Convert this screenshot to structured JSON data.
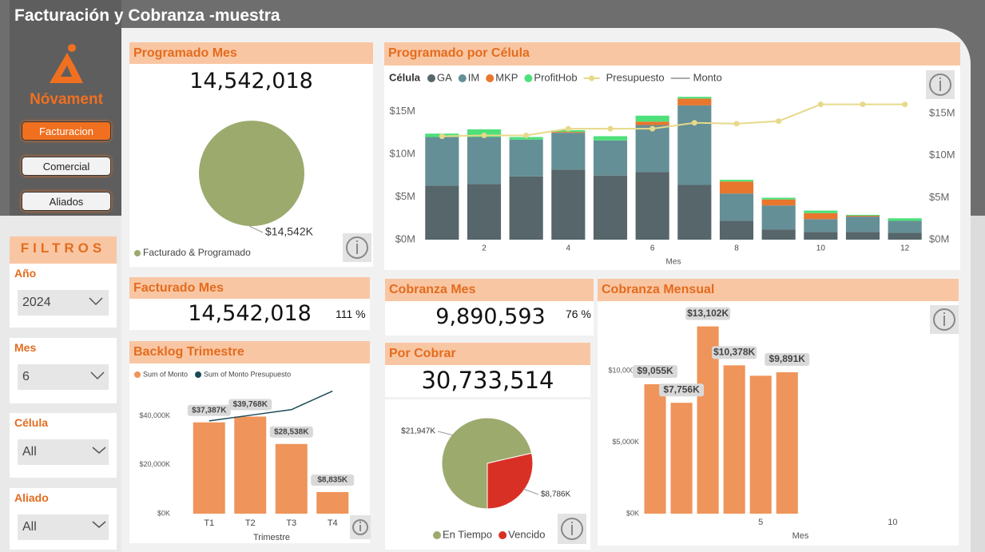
{
  "header": {
    "title": "Facturación y Cobranza -muestra"
  },
  "logo": {
    "name": "Nóvament"
  },
  "nav": [
    "Facturacion",
    "Comercial",
    "Aliados"
  ],
  "filters": {
    "title": "FILTROS",
    "items": [
      {
        "label": "Año",
        "value": "2024"
      },
      {
        "label": "Mes",
        "value": "6"
      },
      {
        "label": "Célula",
        "value": "All"
      },
      {
        "label": "Aliado",
        "value": "All"
      }
    ]
  },
  "cards": {
    "programado": {
      "title": "Programado Mes",
      "value": "14,542,018"
    },
    "facturado": {
      "title": "Facturado Mes",
      "value": "14,542,018",
      "percent": "111 %"
    },
    "cobranza": {
      "title": "Cobranza Mes",
      "value": "9,890,593",
      "percent": "76 %"
    },
    "por_cobrar": {
      "title": "Por Cobrar",
      "value": "30,733,514"
    }
  },
  "chart_data": [
    {
      "type": "pie",
      "categories": [
        "Facturado & Programado"
      ],
      "values": [
        14542
      ],
      "value_labels": [
        "$14,542K"
      ],
      "colors": [
        "#9caa6e"
      ]
    },
    {
      "type": "bar",
      "stacked": true,
      "title": "Programado por Célula",
      "legend_title": "Célula",
      "x_label": "Mes",
      "x": [
        1,
        2,
        3,
        4,
        5,
        6,
        7,
        8,
        9,
        10,
        11,
        12
      ],
      "xlim": [
        0.5,
        12.5
      ],
      "xticks": [
        2,
        4,
        6,
        8,
        10,
        12
      ],
      "ylim": [
        0,
        17
      ],
      "yticks": [
        {
          "value": 0,
          "label": "$0M"
        },
        {
          "value": 5,
          "label": "$5M"
        },
        {
          "value": 10,
          "label": "$10M"
        },
        {
          "value": 15,
          "label": "$15M"
        }
      ],
      "y2lim": [
        0,
        17.3
      ],
      "y2ticks": [
        {
          "value": 0,
          "label": "$0M"
        },
        {
          "value": 5,
          "label": "$5M"
        },
        {
          "value": 10,
          "label": "$10M"
        },
        {
          "value": 15,
          "label": "$15M"
        }
      ],
      "series": [
        {
          "name": "GA",
          "color": "#56666a",
          "values": [
            6.3,
            6.5,
            7.4,
            8.2,
            7.5,
            7.9,
            6.4,
            2.2,
            1.2,
            0.9,
            0.9,
            0.8
          ]
        },
        {
          "name": "IM",
          "color": "#658f96",
          "values": [
            5.7,
            5.5,
            4.3,
            4.3,
            4.1,
            5.5,
            9.3,
            3.2,
            2.8,
            1.5,
            1.8,
            1.4
          ]
        },
        {
          "name": "MKP",
          "color": "#e8762d",
          "values": [
            0,
            0,
            0,
            0.1,
            0,
            0.4,
            0.8,
            1.4,
            0.7,
            0.7,
            0.1,
            0
          ]
        },
        {
          "name": "ProfitHob",
          "color": "#4ee07a",
          "values": [
            0.4,
            0.9,
            0.3,
            0.2,
            0.5,
            0.7,
            0.2,
            0.2,
            0.2,
            0.3,
            0.1,
            0.3
          ]
        },
        {
          "name": "Presupuesto",
          "type": "line",
          "axis": "y2",
          "color": "#e6d98a",
          "values": [
            12.3,
            12.4,
            12.4,
            13.2,
            13.2,
            13.2,
            13.9,
            13.8,
            14.1,
            16.1,
            16.1,
            16.1
          ]
        },
        {
          "name": "Monto",
          "type": "line",
          "color": "#aaaaaa",
          "values": [
            null,
            null,
            null,
            null,
            null,
            null,
            null,
            null,
            null,
            null,
            null,
            null
          ]
        }
      ]
    },
    {
      "type": "bar",
      "title": "Backlog Trimestre",
      "x_label": "Trimestre",
      "categories": [
        "T1",
        "T2",
        "T3",
        "T4"
      ],
      "ylim": [
        0,
        53000
      ],
      "yticks": [
        {
          "value": 0,
          "label": "$0K"
        },
        {
          "value": 20000,
          "label": "$20,000K"
        },
        {
          "value": 40000,
          "label": "$40,000K"
        }
      ],
      "series": [
        {
          "name": "Sum of Monto",
          "color": "#ef945a",
          "values": [
            37387,
            39768,
            28538,
            8835
          ],
          "value_labels": [
            "$37,387K",
            "$39,768K",
            "$28,538K",
            "$8,835K"
          ]
        },
        {
          "name": "Sum of Monto Presupuesto",
          "type": "line",
          "color": "#1c4a56",
          "values": [
            38000,
            40300,
            42600,
            50200
          ]
        }
      ]
    },
    {
      "type": "pie",
      "categories": [
        "En Tiempo",
        "Vencido"
      ],
      "values": [
        21947,
        8786
      ],
      "value_labels": [
        "$21,947K",
        "$8,786K"
      ],
      "colors": [
        "#9caa6e",
        "#d93025"
      ]
    },
    {
      "type": "bar",
      "title": "Cobranza Mensual",
      "x_label": "Mes",
      "x": [
        1,
        2,
        3,
        4,
        5,
        6
      ],
      "xlim": [
        0,
        12.5
      ],
      "xticks": [
        5,
        10
      ],
      "ylim": [
        0,
        14700
      ],
      "yticks": [
        {
          "value": 0,
          "label": "$0K"
        },
        {
          "value": 5000,
          "label": "$5,000K"
        },
        {
          "value": 10000,
          "label": "$10,000K"
        }
      ],
      "color": "#ef945a",
      "values": [
        9055,
        7756,
        13102,
        10378,
        9650,
        9891
      ],
      "value_labels": [
        "$9,055K",
        "$7,756K",
        "$13,102K",
        "$10,378K",
        null,
        "$9,891K"
      ]
    }
  ]
}
